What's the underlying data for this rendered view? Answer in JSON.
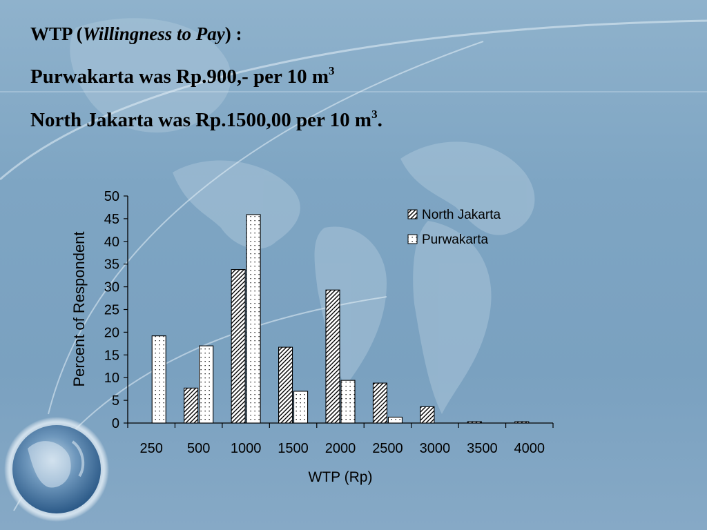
{
  "slide": {
    "line1": {
      "part1": "WTP (",
      "italic": "Willingness to Pay",
      "part2": ") :"
    },
    "line2": {
      "text": "Purwakarta was Rp.900,- per 10 m",
      "sup": "3"
    },
    "line3": {
      "text": "North Jakarta was Rp.1500,00 per 10 m",
      "sup": "3",
      "end": "."
    }
  },
  "chart_data": {
    "type": "bar",
    "categories": [
      "250",
      "500",
      "1000",
      "1500",
      "2000",
      "2500",
      "3000",
      "3500",
      "4000"
    ],
    "series": [
      {
        "name": "North Jakarta",
        "values": [
          0,
          7.7,
          33.8,
          16.7,
          29.3,
          8.8,
          3.6,
          0.3,
          0.3
        ],
        "pattern": "diagonal-hatch"
      },
      {
        "name": "Purwakarta",
        "values": [
          19.2,
          17.0,
          45.9,
          7.0,
          9.4,
          1.3,
          0,
          0,
          0
        ],
        "pattern": "dotted"
      }
    ],
    "xlabel": "WTP (Rp)",
    "ylabel": "Percent of Respondent",
    "ylim": [
      0,
      50
    ],
    "yticks": [
      "0",
      "5",
      "10",
      "15",
      "20",
      "25",
      "30",
      "35",
      "40",
      "45",
      "50"
    ],
    "legend_position": "top-right",
    "grid": false
  }
}
